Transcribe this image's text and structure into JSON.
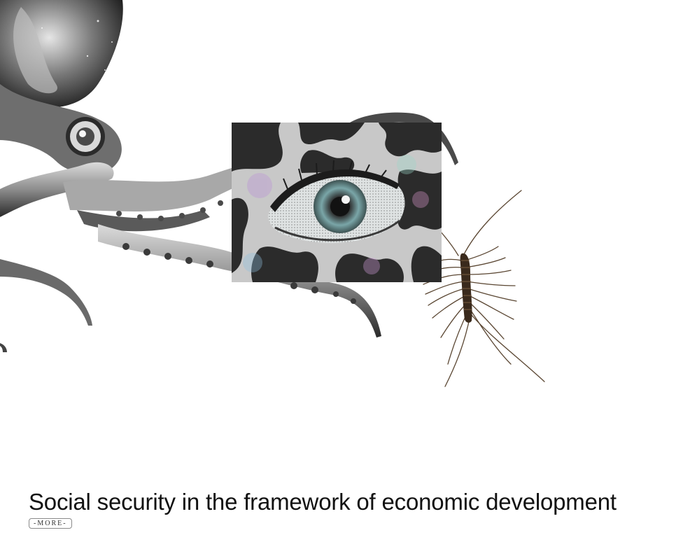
{
  "article": {
    "title": "Social security in the framework of economic development",
    "more_label": "-MORE-"
  },
  "artwork": {
    "octopus": "octopus-collage-image",
    "eye": "halftone-eye-image",
    "centipede": "centipede-image"
  }
}
